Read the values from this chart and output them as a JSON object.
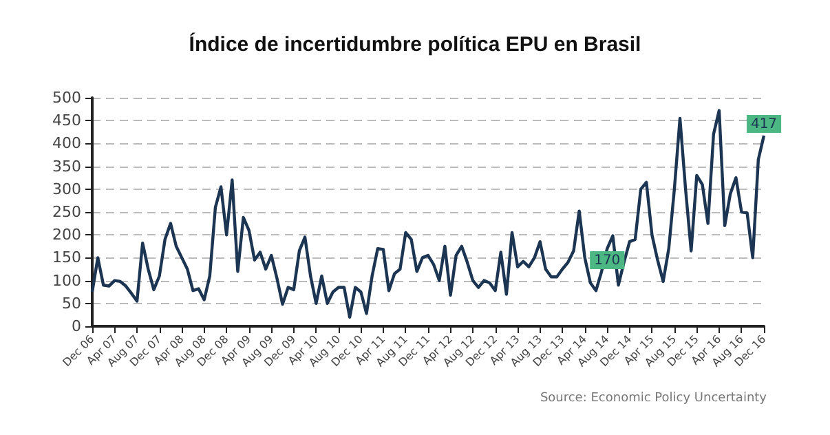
{
  "chart_data": {
    "type": "line",
    "title": "Índice de incertidumbre política EPU en Brasil",
    "categories": [
      "Dec 06",
      null,
      null,
      null,
      "Apr 07",
      null,
      null,
      null,
      "Aug 07",
      null,
      null,
      null,
      "Dec 07",
      null,
      null,
      null,
      "Apr 08",
      null,
      null,
      null,
      "Aug 08",
      null,
      null,
      null,
      "Dec 08",
      null,
      null,
      null,
      "Apr 09",
      null,
      null,
      null,
      "Aug 09",
      null,
      null,
      null,
      "Dec 09",
      null,
      null,
      null,
      "Apr 10",
      null,
      null,
      null,
      "Aug 10",
      null,
      null,
      null,
      "Dec 10",
      null,
      null,
      null,
      "Apr 11",
      null,
      null,
      null,
      "Aug 11",
      null,
      null,
      null,
      "Dec 11",
      null,
      null,
      null,
      "Apr 12",
      null,
      null,
      null,
      "Aug 12",
      null,
      null,
      null,
      "Dec 12",
      null,
      null,
      null,
      "Apr 13",
      null,
      null,
      null,
      "Aug 13",
      null,
      null,
      null,
      "Dec 13",
      null,
      null,
      null,
      "Apr 14",
      null,
      null,
      null,
      "Aug 14",
      null,
      null,
      null,
      "Dec 14",
      null,
      null,
      null,
      "Apr 15",
      null,
      null,
      null,
      "Aug 15",
      null,
      null,
      null,
      "Dec 15",
      null,
      null,
      null,
      "Apr 16",
      null,
      null,
      null,
      "Aug 16",
      null,
      null,
      null,
      "Dec 16"
    ],
    "series": [
      {
        "color": "#1c3553",
        "values": [
          75,
          150,
          90,
          88,
          100,
          98,
          88,
          72,
          55,
          182,
          125,
          80,
          110,
          190,
          225,
          175,
          150,
          125,
          78,
          82,
          58,
          110,
          260,
          305,
          200,
          320,
          120,
          238,
          210,
          145,
          162,
          125,
          155,
          105,
          48,
          85,
          80,
          165,
          195,
          110,
          50,
          110,
          50,
          75,
          85,
          85,
          20,
          85,
          75,
          28,
          110,
          170,
          168,
          78,
          115,
          125,
          205,
          190,
          120,
          150,
          155,
          135,
          100,
          175,
          68,
          155,
          175,
          140,
          100,
          85,
          100,
          95,
          78,
          162,
          70,
          205,
          130,
          142,
          130,
          150,
          185,
          125,
          108,
          108,
          125,
          140,
          165,
          252,
          150,
          95,
          78,
          120,
          170,
          198,
          90,
          140,
          185,
          190,
          300,
          315,
          200,
          145,
          98,
          170,
          300,
          455,
          300,
          165,
          330,
          310,
          225,
          420,
          472,
          220,
          290,
          325,
          250,
          248,
          150,
          365,
          417
        ],
        "value_labels": [
          null,
          null,
          null,
          null,
          null,
          null,
          null,
          null,
          null,
          null,
          null,
          null,
          null,
          null,
          null,
          null,
          null,
          null,
          null,
          null,
          null,
          null,
          null,
          null,
          null,
          null,
          null,
          null,
          null,
          null,
          null,
          null,
          null,
          null,
          null,
          null,
          null,
          null,
          null,
          null,
          null,
          null,
          null,
          null,
          null,
          null,
          null,
          null,
          null,
          null,
          null,
          null,
          null,
          null,
          null,
          null,
          null,
          null,
          null,
          null,
          null,
          null,
          null,
          null,
          null,
          null,
          null,
          null,
          null,
          null,
          null,
          null,
          null,
          null,
          null,
          null,
          null,
          null,
          null,
          null,
          null,
          null,
          null,
          null,
          null,
          null,
          null,
          null,
          null,
          null,
          null,
          null,
          "170",
          null,
          null,
          null,
          null,
          null,
          null,
          null,
          null,
          null,
          null,
          null,
          null,
          null,
          null,
          null,
          null,
          null,
          null,
          null,
          null,
          null,
          null,
          null,
          null,
          null,
          null,
          null,
          "417"
        ]
      }
    ],
    "ylim": [
      0,
      500
    ],
    "yticks": [
      0,
      50,
      100,
      150,
      200,
      250,
      300,
      350,
      400,
      450,
      500
    ],
    "grid": "y",
    "annotations": [
      "Source: Economic Policy Uncertainty"
    ]
  }
}
